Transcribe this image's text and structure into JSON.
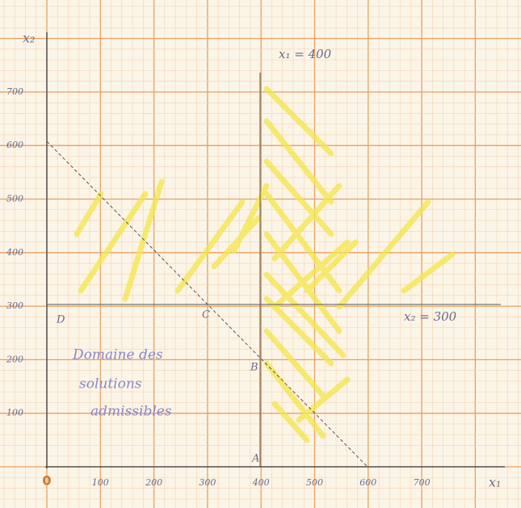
{
  "axes": {
    "y_label": "x₂",
    "x_label": "x₁",
    "origin": "0",
    "y_ticks": [
      "700",
      "600",
      "500",
      "400",
      "300",
      "200",
      "100"
    ],
    "x_ticks": [
      "100",
      "200",
      "300",
      "400",
      "500",
      "600",
      "700"
    ]
  },
  "annotations": {
    "vertical_line": "x₁ = 400",
    "horizontal_line": "x₂ = 300",
    "region": [
      "Domaine des",
      "solutions",
      "admissibles"
    ]
  },
  "points": [
    "D",
    "C",
    "B",
    "A"
  ]
}
